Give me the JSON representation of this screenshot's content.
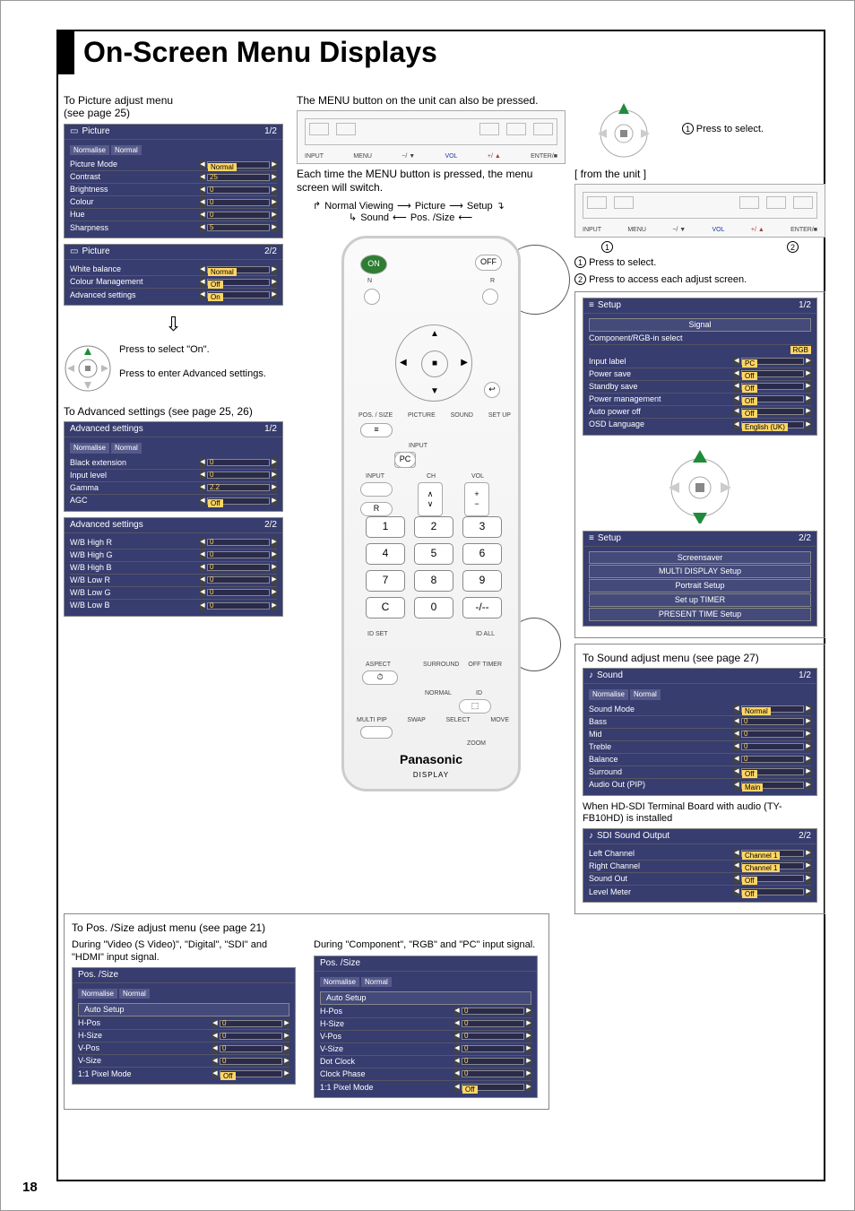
{
  "page": {
    "title": "On-Screen Menu Displays",
    "number": "18"
  },
  "col1": {
    "caption_picture": "To Picture adjust menu\n(see page 25)",
    "picture1": {
      "title": "Picture",
      "page": "1/2",
      "normalise": "Normalise",
      "normal": "Normal",
      "rows": [
        {
          "label": "Picture Mode",
          "value": "Normal"
        },
        {
          "label": "Contrast",
          "value": "25"
        },
        {
          "label": "Brightness",
          "value": "0"
        },
        {
          "label": "Colour",
          "value": "0"
        },
        {
          "label": "Hue",
          "value": "0"
        },
        {
          "label": "Sharpness",
          "value": "5"
        }
      ]
    },
    "picture2": {
      "title": "Picture",
      "page": "2/2",
      "rows": [
        {
          "label": "White balance",
          "value": "Normal"
        },
        {
          "label": "Colour Management",
          "value": "Off"
        },
        {
          "label": "Advanced settings",
          "value": "On"
        }
      ]
    },
    "joy": {
      "select": "Press to select \"On\".",
      "enter": "Press to enter Advanced settings."
    },
    "caption_adv": "To Advanced settings (see page 25, 26)",
    "adv1": {
      "title": "Advanced settings",
      "page": "1/2",
      "normalise": "Normalise",
      "normal": "Normal",
      "rows": [
        {
          "label": "Black extension",
          "value": "0"
        },
        {
          "label": "Input level",
          "value": "0"
        },
        {
          "label": "Gamma",
          "value": "2.2"
        },
        {
          "label": "AGC",
          "value": "Off"
        }
      ]
    },
    "adv2": {
      "title": "Advanced settings",
      "page": "2/2",
      "rows": [
        {
          "label": "W/B High R",
          "value": "0"
        },
        {
          "label": "W/B High G",
          "value": "0"
        },
        {
          "label": "W/B High B",
          "value": "0"
        },
        {
          "label": "W/B Low R",
          "value": "0"
        },
        {
          "label": "W/B Low G",
          "value": "0"
        },
        {
          "label": "W/B Low B",
          "value": "0"
        }
      ]
    }
  },
  "col2": {
    "caption_menu": "The MENU button on the unit can also be pressed.",
    "caption_switch": "Each time the MENU button is pressed, the menu screen will switch.",
    "unit": {
      "labels": [
        "INPUT",
        "MENU",
        "−/ ▼",
        "VOL",
        "+/ ▲",
        "ENTER/■"
      ]
    },
    "flow": {
      "l1a": "Normal Viewing",
      "l1b": "Picture",
      "l1c": "Setup",
      "l2a": "Sound",
      "l2b": "Pos. /Size"
    },
    "remote": {
      "on": "ON",
      "off": "OFF",
      "n": "N",
      "r": "R",
      "pos_size": "POS. / SIZE",
      "picture": "PICTURE",
      "sound": "SOUND",
      "setup": "SET UP",
      "input": "INPUT",
      "ch": "CH",
      "vol": "VOL",
      "pc": "PC",
      "recall_r": "R",
      "idset": "ID SET",
      "idall": "ID ALL",
      "aspect": "ASPECT",
      "surround": "SURROUND",
      "offtimer": "OFF TIMER",
      "normal": "NORMAL",
      "id": "ID",
      "multipip": "MULTI PIP",
      "swap": "SWAP",
      "select": "SELECT",
      "move": "MOVE",
      "zoom": "ZOOM",
      "brand": "Panasonic",
      "brand_sub": "DISPLAY",
      "keys": [
        "1",
        "2",
        "3",
        "4",
        "5",
        "6",
        "7",
        "8",
        "9",
        "C",
        "0",
        "-/--"
      ]
    }
  },
  "col3": {
    "press_select": "Press to select.",
    "from_unit": "[ from the unit ]",
    "step1": "Press to select.",
    "step2": "Press to access each adjust screen.",
    "setup1": {
      "title": "Setup",
      "page": "1/2",
      "signal": "Signal",
      "subline": "Component/RGB-in select",
      "rgb": "RGB",
      "rows": [
        {
          "label": "Input label",
          "value": "PC"
        },
        {
          "label": "Power save",
          "value": "Off"
        },
        {
          "label": "Standby save",
          "value": "Off"
        },
        {
          "label": "Power management",
          "value": "Off"
        },
        {
          "label": "Auto power off",
          "value": "Off"
        },
        {
          "label": "OSD Language",
          "value": "English (UK)"
        }
      ]
    },
    "setup2": {
      "title": "Setup",
      "page": "2/2",
      "links": [
        "Screensaver",
        "MULTI DISPLAY Setup",
        "Portrait Setup",
        "Set up TIMER",
        "PRESENT TIME Setup"
      ]
    },
    "caption_sound": "To Sound adjust menu (see page 27)",
    "sound": {
      "title": "Sound",
      "page": "1/2",
      "normalise": "Normalise",
      "normal": "Normal",
      "rows": [
        {
          "label": "Sound Mode",
          "value": "Normal"
        },
        {
          "label": "Bass",
          "value": "0"
        },
        {
          "label": "Mid",
          "value": "0"
        },
        {
          "label": "Treble",
          "value": "0"
        },
        {
          "label": "Balance",
          "value": "0"
        },
        {
          "label": "Surround",
          "value": "Off"
        },
        {
          "label": "Audio Out (PIP)",
          "value": "Main"
        }
      ]
    },
    "caption_sdi": "When HD-SDI Terminal Board with audio (TY-FB10HD) is installed",
    "sdi": {
      "title": "SDI Sound Output",
      "page": "2/2",
      "rows": [
        {
          "label": "Left Channel",
          "value": "Channel 1"
        },
        {
          "label": "Right Channel",
          "value": "Channel 1"
        },
        {
          "label": "Sound Out",
          "value": "Off"
        },
        {
          "label": "Level Meter",
          "value": "Off"
        }
      ]
    }
  },
  "bottom": {
    "caption_pos": "To Pos. /Size adjust menu (see page 21)",
    "left_caption": "During \"Video (S Video)\", \"Digital\", \"SDI\" and \"HDMI\" input signal.",
    "right_caption": "During \"Component\", \"RGB\" and \"PC\" input signal.",
    "pos1": {
      "title": "Pos. /Size",
      "normalise": "Normalise",
      "normal": "Normal",
      "autosetup": "Auto Setup",
      "rows": [
        {
          "label": "H-Pos",
          "value": "0"
        },
        {
          "label": "H-Size",
          "value": "0"
        },
        {
          "label": "V-Pos",
          "value": "0"
        },
        {
          "label": "V-Size",
          "value": "0"
        },
        {
          "label": "1:1 Pixel Mode",
          "value": "Off"
        }
      ]
    },
    "pos2": {
      "title": "Pos. /Size",
      "normalise": "Normalise",
      "normal": "Normal",
      "autosetup": "Auto Setup",
      "rows": [
        {
          "label": "H-Pos",
          "value": "0"
        },
        {
          "label": "H-Size",
          "value": "0"
        },
        {
          "label": "V-Pos",
          "value": "0"
        },
        {
          "label": "V-Size",
          "value": "0"
        },
        {
          "label": "Dot Clock",
          "value": "0"
        },
        {
          "label": "Clock Phase",
          "value": "0"
        },
        {
          "label": "1:1 Pixel Mode",
          "value": "Off"
        }
      ]
    }
  }
}
